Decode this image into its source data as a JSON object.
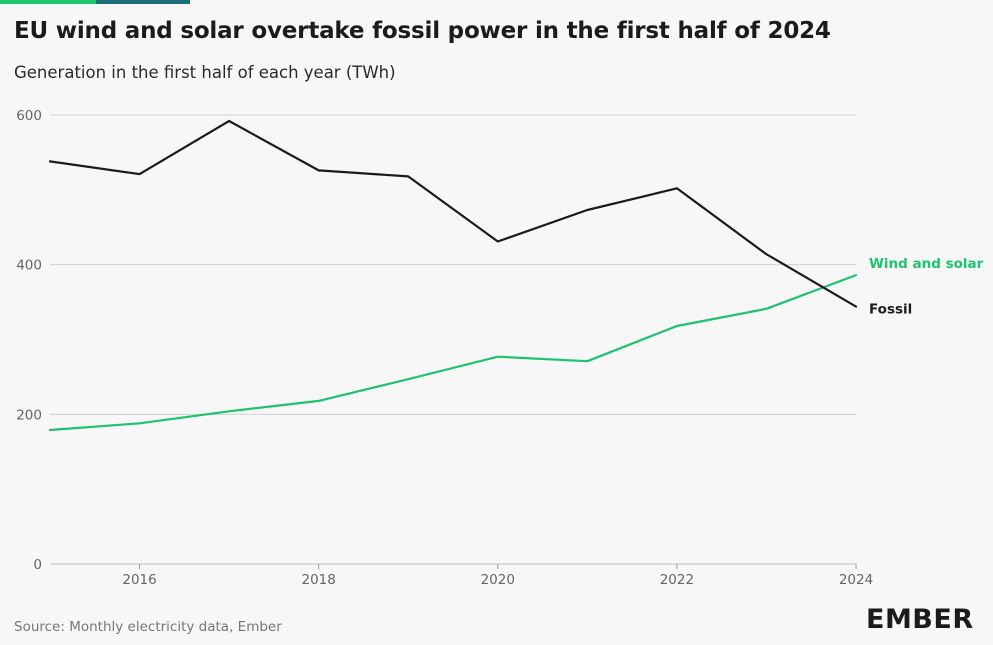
{
  "title": "EU wind and solar overtake fossil power in the first half of 2024",
  "subtitle": "Generation in the first half of each year (TWh)",
  "source": "Source: Monthly electricity data, Ember",
  "logo_text": "EMBER",
  "colors": {
    "background": "#f7f7f7",
    "fossil": "#1b1b1b",
    "wind_solar": "#1dc46e",
    "grid": "#d0d0d0",
    "accent_bar_1": "#1dc46e",
    "accent_bar_2": "#1f6f7a"
  },
  "chart_data": {
    "type": "line",
    "title": "EU wind and solar overtake fossil power in the first half of 2024",
    "subtitle": "Generation in the first half of each year (TWh)",
    "xlabel": "",
    "ylabel": "",
    "x": [
      2015,
      2016,
      2017,
      2018,
      2019,
      2020,
      2021,
      2022,
      2023,
      2024
    ],
    "xlim": [
      2015,
      2024
    ],
    "ylim": [
      0,
      600
    ],
    "x_ticks": [
      "2016",
      "2018",
      "2020",
      "2022",
      "2024"
    ],
    "y_ticks": [
      "0",
      "200",
      "400",
      "600"
    ],
    "grid": "horizontal",
    "legend": "inline labels at line ends",
    "series": [
      {
        "name": "Wind and solar",
        "color": "#1dc46e",
        "values": [
          179,
          188,
          204,
          218,
          247,
          277,
          271,
          318,
          341,
          386
        ]
      },
      {
        "name": "Fossil",
        "color": "#1b1b1b",
        "values": [
          538,
          521,
          592,
          526,
          518,
          431,
          473,
          502,
          414,
          344
        ]
      }
    ]
  }
}
